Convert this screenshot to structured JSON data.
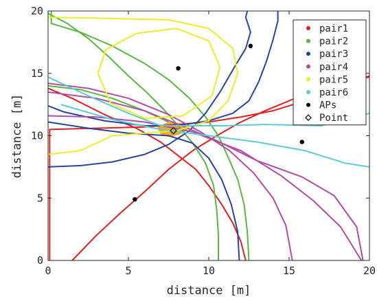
{
  "chart_data": {
    "type": "line",
    "xlabel": "distance [m]",
    "ylabel": "distance [m]",
    "xlim": [
      0,
      20
    ],
    "ylim": [
      0,
      20
    ],
    "xticks": [
      "0",
      "5",
      "10",
      "15",
      "20"
    ],
    "yticks": [
      "0",
      "5",
      "10",
      "15",
      "20"
    ],
    "grid": false,
    "legend_position": "top-right",
    "series": [
      {
        "name": "pair1",
        "color": "#e02020",
        "curves": [
          [
            [
              1.5,
              0
            ],
            [
              3,
              2
            ],
            [
              4.5,
              3.8
            ],
            [
              6,
              5.5
            ],
            [
              7.5,
              7.3
            ],
            [
              9,
              8.8
            ],
            [
              10.5,
              10
            ],
            [
              12,
              11.1
            ],
            [
              13.5,
              12
            ],
            [
              15,
              12.8
            ],
            [
              16.5,
              13.6
            ],
            [
              18,
              14.2
            ],
            [
              19.5,
              14.6
            ],
            [
              20,
              14.7
            ]
          ],
          [
            [
              0.1,
              0
            ],
            [
              0.1,
              3
            ],
            [
              0.1,
              6
            ],
            [
              0.1,
              8
            ],
            [
              0.1,
              10.5
            ],
            [
              3,
              10.6
            ],
            [
              6,
              10.7
            ],
            [
              8,
              10.9
            ],
            [
              10,
              11.1
            ],
            [
              12,
              11.5
            ],
            [
              14,
              12
            ],
            [
              16,
              12.8
            ],
            [
              17.5,
              13.5
            ],
            [
              19,
              14.3
            ],
            [
              20,
              14.8
            ]
          ],
          [
            [
              12.3,
              0
            ],
            [
              12,
              1.5
            ],
            [
              11.5,
              3
            ],
            [
              10.8,
              4.5
            ],
            [
              10,
              6
            ],
            [
              9.2,
              7.3
            ],
            [
              8,
              8.5
            ],
            [
              7,
              9.5
            ],
            [
              5.5,
              10.6
            ],
            [
              3.5,
              11.7
            ],
            [
              1.5,
              13
            ],
            [
              0,
              13.8
            ]
          ]
        ]
      },
      {
        "name": "pair2",
        "color": "#5ab641",
        "curves": [
          [
            [
              0,
              19.8
            ],
            [
              1.2,
              19
            ],
            [
              2.5,
              17.8
            ],
            [
              3.8,
              16.3
            ],
            [
              5,
              14.8
            ],
            [
              6.2,
              13.4
            ],
            [
              7.2,
              12.1
            ],
            [
              8.1,
              10.8
            ],
            [
              9,
              9.4
            ],
            [
              9.8,
              7.8
            ],
            [
              10.3,
              6
            ],
            [
              10.5,
              4
            ],
            [
              10.6,
              2
            ],
            [
              10.6,
              0
            ]
          ],
          [
            [
              0.2,
              20
            ],
            [
              0.2,
              19
            ],
            [
              2,
              18.3
            ],
            [
              4,
              17.2
            ],
            [
              6,
              15.8
            ],
            [
              7.5,
              14.5
            ],
            [
              8.8,
              13
            ],
            [
              9.8,
              11.5
            ],
            [
              10.6,
              10
            ],
            [
              11.2,
              8.3
            ],
            [
              11.8,
              6.5
            ],
            [
              12.2,
              4.5
            ],
            [
              12.4,
              2.3
            ],
            [
              12.5,
              0
            ]
          ],
          [
            [
              0,
              14
            ],
            [
              2,
              13.7
            ],
            [
              4,
              13
            ],
            [
              6,
              12
            ],
            [
              7.5,
              11.1
            ]
          ]
        ]
      },
      {
        "name": "pair3",
        "color": "#27449d",
        "curves": [
          [
            [
              0,
              7.5
            ],
            [
              2,
              7.6
            ],
            [
              4,
              7.9
            ],
            [
              6,
              8.5
            ],
            [
              7.5,
              9.3
            ],
            [
              8.8,
              10.4
            ],
            [
              9.8,
              11.8
            ],
            [
              10.7,
              13.5
            ],
            [
              11.6,
              15.5
            ],
            [
              12.3,
              17
            ],
            [
              12.6,
              18.3
            ],
            [
              12.3,
              19.5
            ],
            [
              12.4,
              20
            ]
          ],
          [
            [
              14.3,
              20
            ],
            [
              14.3,
              19.2
            ],
            [
              14,
              17.7
            ],
            [
              13.6,
              16
            ],
            [
              13.1,
              14.3
            ],
            [
              12.5,
              12.8
            ],
            [
              11.5,
              11.8
            ],
            [
              10,
              11.2
            ],
            [
              8,
              10.8
            ],
            [
              6,
              10.8
            ],
            [
              3.5,
              11.2
            ],
            [
              1,
              11.9
            ],
            [
              0,
              12.4
            ]
          ],
          [
            [
              0,
              11.1
            ],
            [
              2.5,
              10.6
            ],
            [
              5,
              10.2
            ],
            [
              7.5,
              10
            ],
            [
              9,
              9.4
            ],
            [
              10,
              8.2
            ],
            [
              10.8,
              6.5
            ],
            [
              11.4,
              4.5
            ],
            [
              11.8,
              2.3
            ],
            [
              11.9,
              0
            ]
          ]
        ]
      },
      {
        "name": "pair4",
        "color": "#b14ca5",
        "curves": [
          [
            [
              0,
              14.2
            ],
            [
              2.5,
              13.8
            ],
            [
              5,
              13
            ],
            [
              7.5,
              11.7
            ],
            [
              9.5,
              10.3
            ],
            [
              11.3,
              8.8
            ],
            [
              12.8,
              7
            ],
            [
              14,
              5
            ],
            [
              14.8,
              2.8
            ],
            [
              15.2,
              0
            ]
          ],
          [
            [
              0,
              11.6
            ],
            [
              3,
              11.5
            ],
            [
              6,
              11.1
            ],
            [
              9,
              10.3
            ],
            [
              12,
              8.8
            ],
            [
              14.5,
              6.8
            ],
            [
              16.5,
              4.8
            ],
            [
              18.2,
              2.7
            ],
            [
              19.5,
              0
            ]
          ],
          [
            [
              0,
              13.5
            ],
            [
              3,
              13
            ],
            [
              6,
              12
            ],
            [
              8.5,
              10.7
            ],
            [
              10.5,
              9.6
            ],
            [
              13,
              8
            ],
            [
              15.8,
              6.7
            ],
            [
              17.8,
              5.2
            ],
            [
              19.2,
              2.7
            ],
            [
              19.6,
              0
            ]
          ]
        ]
      },
      {
        "name": "pair5",
        "color": "#eeee28",
        "curves": [
          [
            [
              0,
              19.5
            ],
            [
              4,
              19.4
            ],
            [
              7.5,
              19.3
            ],
            [
              10,
              18.6
            ],
            [
              11.5,
              17
            ],
            [
              11.8,
              15
            ],
            [
              11.2,
              12.8
            ],
            [
              10,
              11.2
            ],
            [
              8,
              10.4
            ],
            [
              6,
              10.2
            ],
            [
              4,
              10
            ],
            [
              2,
              8.8
            ],
            [
              0,
              8.5
            ]
          ],
          [
            [
              3.1,
              15
            ],
            [
              3.6,
              16.9
            ],
            [
              5.5,
              18.2
            ],
            [
              8,
              18.6
            ],
            [
              10,
              17.6
            ],
            [
              10.7,
              15.5
            ],
            [
              10.2,
              13.2
            ],
            [
              8.4,
              11.6
            ],
            [
              6,
              11.4
            ],
            [
              3.9,
              12.6
            ],
            [
              3.1,
              15
            ]
          ]
        ]
      },
      {
        "name": "pair6",
        "color": "#5dcbd3",
        "curves": [
          [
            [
              0,
              14.7
            ],
            [
              2.5,
              13.2
            ],
            [
              5,
              11.8
            ],
            [
              7,
              10.8
            ],
            [
              9,
              10.8
            ],
            [
              11,
              10.8
            ],
            [
              13.5,
              10.9
            ],
            [
              17,
              10.8
            ],
            [
              20,
              11.8
            ]
          ],
          [
            [
              0.8,
              12.5
            ],
            [
              4,
              11.3
            ],
            [
              7,
              10.5
            ],
            [
              10,
              10
            ],
            [
              13,
              9.5
            ],
            [
              16,
              8.8
            ],
            [
              18.5,
              7.8
            ],
            [
              20,
              7.5
            ]
          ]
        ]
      }
    ],
    "aps": {
      "name": "APs",
      "color": "#000000",
      "x": [
        8.1,
        12.6,
        5.4,
        15.8
      ],
      "y": [
        15.4,
        17.2,
        4.9,
        9.5
      ]
    },
    "point": {
      "name": "Point",
      "x": 7.8,
      "y": 10.4
    },
    "feasible_region": {
      "color": "#f5a623",
      "polygon": [
        [
          6.8,
          10.7
        ],
        [
          7.5,
          11.1
        ],
        [
          8.2,
          11.0
        ],
        [
          8.8,
          10.6
        ],
        [
          8.2,
          10.1
        ],
        [
          7.5,
          9.9
        ],
        [
          7.0,
          10.1
        ]
      ]
    },
    "legend": [
      {
        "label": "pair1",
        "color": "#e02020",
        "marker": "dot"
      },
      {
        "label": "pair2",
        "color": "#5ab641",
        "marker": "dot"
      },
      {
        "label": "pair3",
        "color": "#27449d",
        "marker": "dot"
      },
      {
        "label": "pair4",
        "color": "#b14ca5",
        "marker": "dot"
      },
      {
        "label": "pair5",
        "color": "#eeee28",
        "marker": "dot"
      },
      {
        "label": "pair6",
        "color": "#5dcbd3",
        "marker": "dot"
      },
      {
        "label": "APs",
        "color": "#000000",
        "marker": "dot"
      },
      {
        "label": "Point",
        "color": "#000000",
        "marker": "diamond"
      }
    ]
  }
}
